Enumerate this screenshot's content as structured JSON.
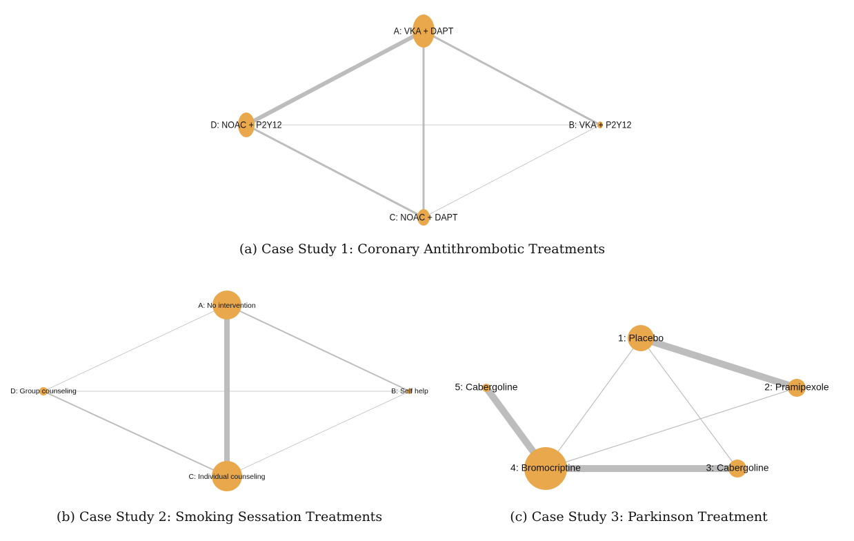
{
  "colors": {
    "node": "#e8a84b",
    "edge": "#bdbdbd",
    "text": "#111111",
    "background": "#ffffff"
  },
  "networks": [
    {
      "id": "a",
      "caption": "(a) Case Study 1: Coronary Antithrombotic Treatments",
      "nodes": [
        {
          "id": "A",
          "label": "A: VKA + DAPT",
          "size": "large"
        },
        {
          "id": "B",
          "label": "B: VKA + P2Y12",
          "size": "tiny"
        },
        {
          "id": "C",
          "label": "C: NOAC + DAPT",
          "size": "small"
        },
        {
          "id": "D",
          "label": "D: NOAC + P2Y12",
          "size": "medium"
        }
      ],
      "edges": [
        {
          "from": "A",
          "to": "D",
          "weight": "heavy"
        },
        {
          "from": "A",
          "to": "B",
          "weight": "medium"
        },
        {
          "from": "A",
          "to": "C",
          "weight": "medium"
        },
        {
          "from": "D",
          "to": "C",
          "weight": "medium"
        },
        {
          "from": "D",
          "to": "B",
          "weight": "light"
        },
        {
          "from": "C",
          "to": "B",
          "weight": "light"
        }
      ]
    },
    {
      "id": "b",
      "caption": "(b) Case Study 2: Smoking Sessation Treatments",
      "nodes": [
        {
          "id": "A",
          "label": "A: No intervention",
          "size": "large"
        },
        {
          "id": "B",
          "label": "B: Self help",
          "size": "tiny"
        },
        {
          "id": "C",
          "label": "C: Individual counseling",
          "size": "large"
        },
        {
          "id": "D",
          "label": "D: Group counseling",
          "size": "tiny"
        }
      ],
      "edges": [
        {
          "from": "A",
          "to": "C",
          "weight": "heavy"
        },
        {
          "from": "A",
          "to": "B",
          "weight": "medium"
        },
        {
          "from": "A",
          "to": "D",
          "weight": "light"
        },
        {
          "from": "D",
          "to": "C",
          "weight": "medium"
        },
        {
          "from": "D",
          "to": "B",
          "weight": "light"
        },
        {
          "from": "C",
          "to": "B",
          "weight": "light"
        }
      ]
    },
    {
      "id": "c",
      "caption": "(c) Case Study 3: Parkinson Treatment",
      "nodes": [
        {
          "id": "1",
          "label": "1: Placebo",
          "size": "medium"
        },
        {
          "id": "2",
          "label": "2: Pramipexole",
          "size": "small"
        },
        {
          "id": "3",
          "label": "3: Cabergoline",
          "size": "small"
        },
        {
          "id": "4",
          "label": "4: Bromocriptine",
          "size": "huge"
        },
        {
          "id": "5",
          "label": "5: Cabergoline",
          "size": "tiny"
        }
      ],
      "edges": [
        {
          "from": "1",
          "to": "2",
          "weight": "heavy"
        },
        {
          "from": "5",
          "to": "4",
          "weight": "heavy"
        },
        {
          "from": "4",
          "to": "3",
          "weight": "heavy"
        },
        {
          "from": "1",
          "to": "4",
          "weight": "light"
        },
        {
          "from": "1",
          "to": "3",
          "weight": "light"
        },
        {
          "from": "4",
          "to": "2",
          "weight": "light"
        }
      ]
    }
  ]
}
